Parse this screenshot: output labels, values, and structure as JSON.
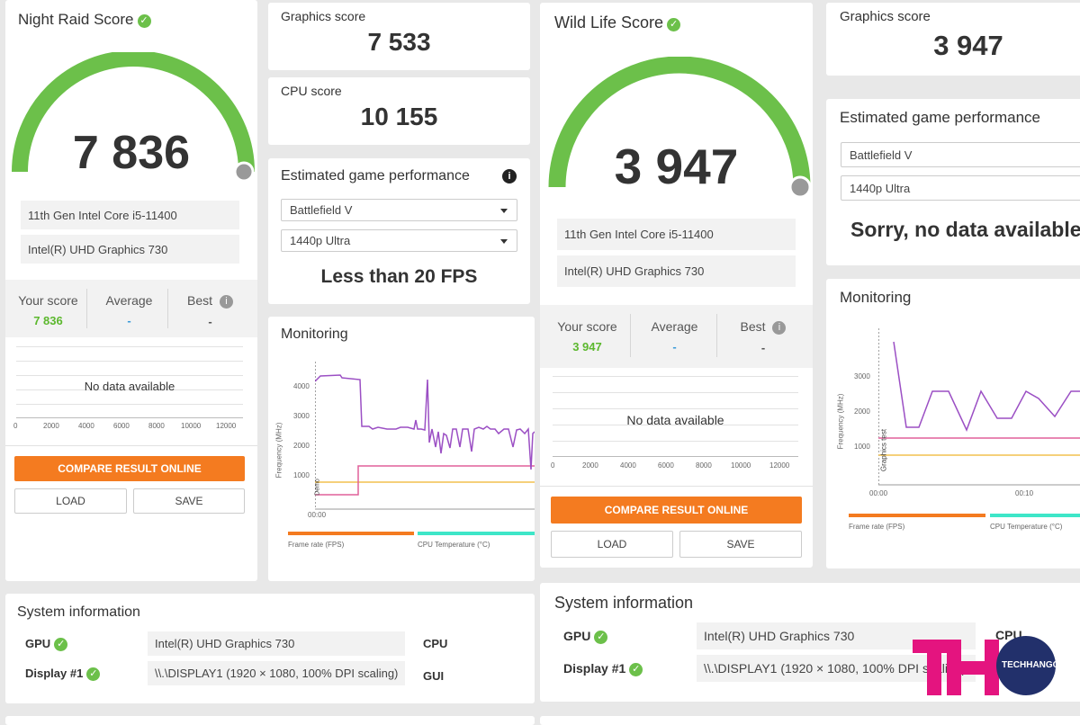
{
  "night_raid": {
    "title": "Night Raid Score",
    "score": "7 836",
    "cpu": "11th Gen Intel Core i5-11400",
    "gpu": "Intel(R) UHD Graphics 730",
    "your_score_label": "Your score",
    "your_score_value": "7 836",
    "average_label": "Average",
    "average_value": "-",
    "best_label": "Best",
    "best_value": "-",
    "no_data": "No data available",
    "x_ticks": [
      "0",
      "2000",
      "4000",
      "6000",
      "8000",
      "10000",
      "12000"
    ],
    "compare_label": "COMPARE RESULT ONLINE",
    "load_label": "LOAD",
    "save_label": "SAVE",
    "graphics_score_label": "Graphics score",
    "graphics_score_value": "7 533",
    "cpu_score_label": "CPU score",
    "cpu_score_value": "10 155",
    "egp_title": "Estimated game performance",
    "game_select": "Battlefield V",
    "preset_select": "1440p Ultra",
    "egp_result": "Less than 20 FPS",
    "monitoring_title": "Monitoring",
    "mon_y_ticks": [
      "4000",
      "3000",
      "2000",
      "1000"
    ],
    "mon_y_label": "Frequency (MHz)",
    "mon_marker": "Demo",
    "mon_x_tick": "00:00",
    "legend_fps": "Frame rate (FPS)",
    "legend_cputemp": "CPU Temperature (°C)"
  },
  "wild_life": {
    "title": "Wild Life Score",
    "score": "3 947",
    "cpu": "11th Gen Intel Core i5-11400",
    "gpu": "Intel(R) UHD Graphics 730",
    "your_score_label": "Your score",
    "your_score_value": "3 947",
    "average_label": "Average",
    "average_value": "-",
    "best_label": "Best",
    "best_value": "-",
    "no_data": "No data available",
    "x_ticks": [
      "0",
      "2000",
      "4000",
      "6000",
      "8000",
      "10000",
      "12000"
    ],
    "compare_label": "COMPARE RESULT ONLINE",
    "load_label": "LOAD",
    "save_label": "SAVE",
    "graphics_score_label": "Graphics score",
    "graphics_score_value": "3 947",
    "egp_title": "Estimated game performance",
    "game_select": "Battlefield V",
    "preset_select": "1440p Ultra",
    "egp_result": "Sorry, no data available",
    "monitoring_title": "Monitoring",
    "mon_y_ticks": [
      "3000",
      "2000",
      "1000"
    ],
    "mon_y_label": "Frequency (MHz)",
    "mon_marker": "Graphics test",
    "mon_x_ticks": [
      "00:00",
      "00:10"
    ],
    "legend_fps": "Frame rate (FPS)",
    "legend_cputemp": "CPU Temperature (°C)"
  },
  "sysinfo_left": {
    "title": "System information",
    "gpu_label": "GPU",
    "gpu_value": "Intel(R) UHD Graphics 730",
    "display_label": "Display #1",
    "display_value": "\\\\.\\DISPLAY1 (1920 × 1080, 100% DPI scaling)",
    "cpu_label": "CPU",
    "gui_label": "GUI"
  },
  "sysinfo_right": {
    "title": "System information",
    "gpu_label": "GPU",
    "gpu_value": "Intel(R) UHD Graphics 730",
    "display_label": "Display #1",
    "display_value": "\\\\.\\DISPLAY1 (1920 × 1080, 100% DPI scaling)",
    "cpu_label": "CPU"
  },
  "watermark": {
    "text": "TECHHANGOUT"
  },
  "colors": {
    "accent_orange": "#f47b20",
    "gauge_green": "#6cc04a",
    "score_green": "#5cb82e",
    "avg_blue": "#3a9ad9",
    "cpu_line_purple": "#9b4fc4",
    "fps_line_pink": "#e0609a",
    "temp_line_yellow": "#f2c14e",
    "temp_legend_teal": "#3ee6c8"
  }
}
